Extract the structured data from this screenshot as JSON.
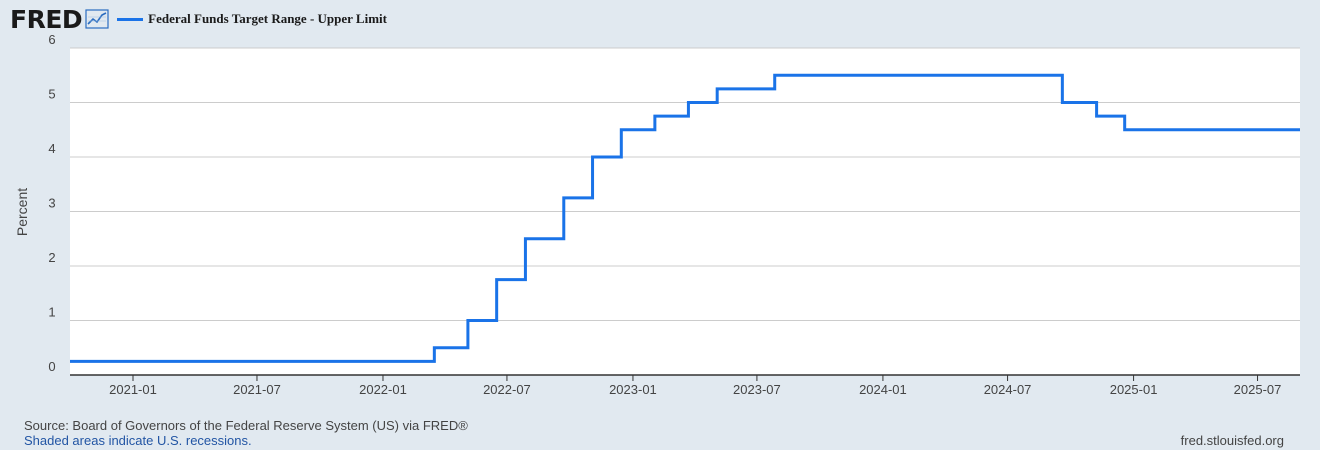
{
  "header": {
    "logo_text": "FRED",
    "logo_icon": "line-chart-icon"
  },
  "colors": {
    "series": "#1a73e8",
    "background": "#e1e9f0",
    "plot_background": "#ffffff",
    "grid": "#cccccc"
  },
  "chart_data": {
    "type": "line",
    "step": true,
    "title": "",
    "xlabel": "",
    "ylabel": "Percent",
    "ylim": [
      0,
      6
    ],
    "yticks": [
      "0",
      "1",
      "2",
      "3",
      "4",
      "5",
      "6"
    ],
    "xlim": [
      "2020-10-01",
      "2025-09-01"
    ],
    "xticks": [
      "2021-01",
      "2021-07",
      "2022-01",
      "2022-07",
      "2023-01",
      "2023-07",
      "2024-01",
      "2024-07",
      "2025-01",
      "2025-07"
    ],
    "grid": true,
    "legend_position": "top-left",
    "series": [
      {
        "name": "Federal Funds Target Range - Upper Limit",
        "points": [
          [
            "2020-10-01",
            0.25
          ],
          [
            "2022-03-17",
            0.5
          ],
          [
            "2022-05-05",
            1.0
          ],
          [
            "2022-06-16",
            1.75
          ],
          [
            "2022-07-28",
            2.5
          ],
          [
            "2022-09-22",
            3.25
          ],
          [
            "2022-11-03",
            4.0
          ],
          [
            "2022-12-15",
            4.5
          ],
          [
            "2023-02-02",
            4.75
          ],
          [
            "2023-03-23",
            5.0
          ],
          [
            "2023-05-04",
            5.25
          ],
          [
            "2023-07-27",
            5.5
          ],
          [
            "2024-09-19",
            5.0
          ],
          [
            "2024-11-08",
            4.75
          ],
          [
            "2024-12-19",
            4.5
          ],
          [
            "2025-09-01",
            4.5
          ]
        ]
      }
    ]
  },
  "footer": {
    "source": "Source: Board of Governors of the Federal Reserve System (US) via FRED®",
    "recessions": "Shaded areas indicate U.S. recessions.",
    "site": "fred.stlouisfed.org"
  }
}
